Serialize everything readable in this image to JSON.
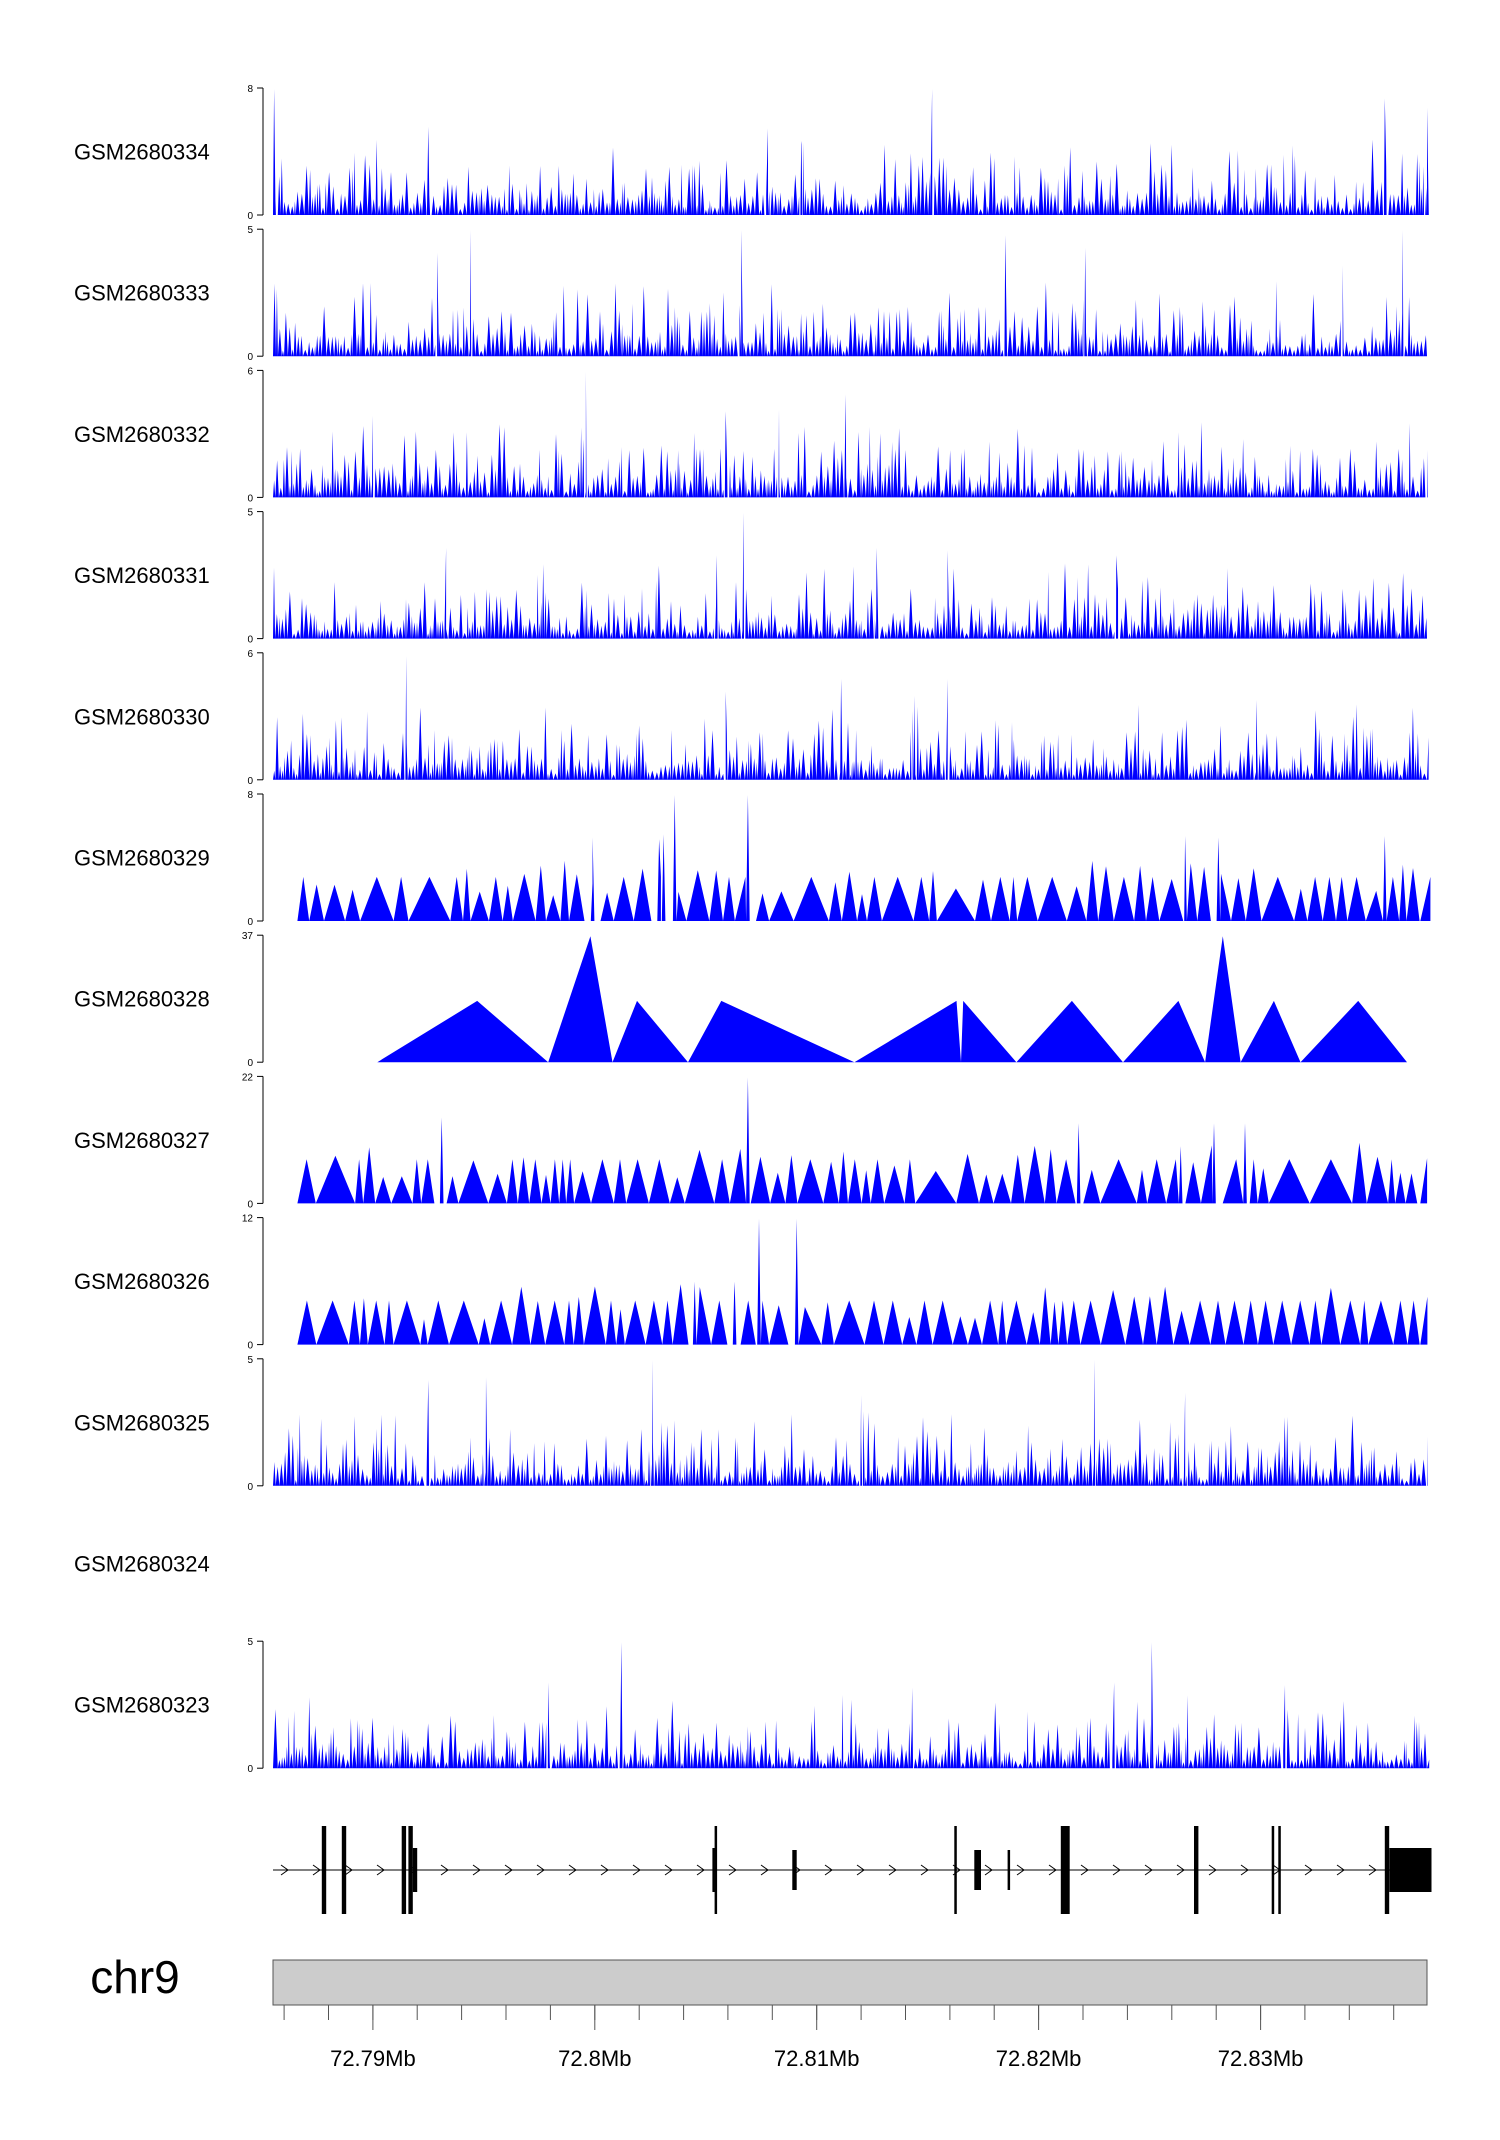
{
  "chart_data": {
    "type": "area",
    "region": {
      "start": 72.7855,
      "end": 72.8375
    },
    "signal_color": "#0000ff",
    "gene_color": "#000000",
    "axis_band_color": "#cccccc",
    "tracks": [
      {
        "name": "GSM2680334",
        "ymax": "8",
        "ymin": "0",
        "ymax_value": 8,
        "density": "dense",
        "peaks": [
          [
            72.78555,
            8
          ],
          [
            72.8152,
            8
          ],
          [
            72.7925,
            5.6
          ],
          [
            72.8356,
            7.4
          ],
          [
            72.8375,
            6.8
          ],
          [
            72.8078,
            5.5
          ],
          [
            72.8093,
            4.7
          ]
        ]
      },
      {
        "name": "GSM2680333",
        "ymax": "5",
        "ymin": "0",
        "ymax_value": 5,
        "density": "dense",
        "peaks": [
          [
            72.7944,
            5
          ],
          [
            72.8066,
            5
          ],
          [
            72.8185,
            4.8
          ],
          [
            72.8364,
            5
          ],
          [
            72.7929,
            4.1
          ],
          [
            72.8221,
            4.3
          ],
          [
            72.8337,
            3.6
          ]
        ]
      },
      {
        "name": "GSM2680332",
        "ymax": "6",
        "ymin": "0",
        "ymax_value": 6,
        "density": "dense",
        "peaks": [
          [
            72.7996,
            6
          ],
          [
            72.8113,
            4.9
          ],
          [
            72.8059,
            4.1
          ],
          [
            72.8083,
            4.2
          ],
          [
            72.79,
            3.9
          ],
          [
            72.8263,
            3.1
          ]
        ]
      },
      {
        "name": "GSM2680331",
        "ymax": "5",
        "ymin": "0",
        "ymax_value": 5,
        "density": "dense",
        "peaks": [
          [
            72.8067,
            5
          ],
          [
            72.7933,
            3.6
          ],
          [
            72.8055,
            3.3
          ],
          [
            72.8127,
            3.6
          ],
          [
            72.8159,
            3.5
          ],
          [
            72.8235,
            3.3
          ]
        ]
      },
      {
        "name": "GSM2680330",
        "ymax": "6",
        "ymin": "0",
        "ymax_value": 6,
        "density": "dense",
        "peaks": [
          [
            72.7915,
            5.9
          ],
          [
            72.8059,
            4.2
          ],
          [
            72.8111,
            4.8
          ],
          [
            72.8159,
            4.8
          ],
          [
            72.8144,
            4
          ],
          [
            72.8298,
            3.8
          ]
        ]
      },
      {
        "name": "GSM2680329",
        "ymax": "8",
        "ymin": "0",
        "ymax_value": 8,
        "density": "triangles",
        "peaks": [
          [
            72.8036,
            8
          ],
          [
            72.8069,
            8
          ],
          [
            72.8031,
            5.5
          ],
          [
            72.8029,
            5.2
          ],
          [
            72.7999,
            5.3
          ],
          [
            72.8266,
            5.4
          ],
          [
            72.8356,
            5.4
          ],
          [
            72.8281,
            5.3
          ]
        ]
      },
      {
        "name": "GSM2680328",
        "ymax": "37",
        "ymin": "0",
        "ymax_value": 37,
        "density": "sparse",
        "peaks": [
          [
            72.7902,
            0
          ],
          [
            72.7947,
            18
          ],
          [
            72.7979,
            0
          ],
          [
            72.7998,
            37
          ],
          [
            72.8008,
            0
          ],
          [
            72.8019,
            18
          ],
          [
            72.8042,
            0
          ],
          [
            72.8057,
            18
          ],
          [
            72.8117,
            0
          ],
          [
            72.8163,
            18
          ],
          [
            72.8165,
            0
          ],
          [
            72.8166,
            18
          ],
          [
            72.819,
            0
          ],
          [
            72.8215,
            18
          ],
          [
            72.8238,
            0
          ],
          [
            72.8263,
            18
          ],
          [
            72.8275,
            0
          ],
          [
            72.8283,
            37
          ],
          [
            72.8291,
            0
          ],
          [
            72.8306,
            18
          ],
          [
            72.8318,
            0
          ],
          [
            72.8344,
            18
          ],
          [
            72.8366,
            0
          ]
        ]
      },
      {
        "name": "GSM2680327",
        "ymax": "22",
        "ymin": "0",
        "ymax_value": 22,
        "density": "triangles",
        "peaks": [
          [
            72.8069,
            22
          ],
          [
            72.7931,
            15
          ],
          [
            72.8218,
            14
          ],
          [
            72.8279,
            14
          ],
          [
            72.8293,
            14
          ],
          [
            72.8264,
            10
          ]
        ]
      },
      {
        "name": "GSM2680326",
        "ymax": "12",
        "ymin": "0",
        "ymax_value": 12,
        "density": "triangles",
        "peaks": [
          [
            72.8074,
            12
          ],
          [
            72.8091,
            12
          ],
          [
            72.8063,
            6
          ],
          [
            72.8045,
            6
          ]
        ]
      },
      {
        "name": "GSM2680325",
        "ymax": "5",
        "ymin": "0",
        "ymax_value": 5,
        "density": "dense",
        "peaks": [
          [
            72.8026,
            5
          ],
          [
            72.8225,
            5
          ],
          [
            72.7925,
            4.2
          ],
          [
            72.7951,
            4.3
          ],
          [
            72.812,
            3.6
          ],
          [
            72.8266,
            3.7
          ]
        ]
      },
      {
        "name": "GSM2680324",
        "ymax": "",
        "ymin": "",
        "ymax_value": 0,
        "density": "empty",
        "peaks": []
      },
      {
        "name": "GSM2680323",
        "ymax": "5",
        "ymin": "0",
        "ymax_value": 5,
        "density": "dense",
        "peaks": [
          [
            72.8012,
            5
          ],
          [
            72.8251,
            5
          ],
          [
            72.8234,
            3.4
          ],
          [
            72.7979,
            3.4
          ],
          [
            72.8143,
            3.2
          ],
          [
            72.8311,
            3.3
          ]
        ]
      }
    ],
    "gene": {
      "strand": "+",
      "exons": [
        {
          "start": 72.7877,
          "end": 72.7879,
          "type": "tall"
        },
        {
          "start": 72.7886,
          "end": 72.7888,
          "type": "tall"
        },
        {
          "start": 72.7913,
          "end": 72.7915,
          "type": "tall"
        },
        {
          "start": 72.7916,
          "end": 72.7918,
          "type": "tall"
        },
        {
          "start": 72.7918,
          "end": 72.792,
          "type": "mid"
        },
        {
          "start": 72.8053,
          "end": 72.8054,
          "type": "mid"
        },
        {
          "start": 72.8054,
          "end": 72.8055,
          "type": "tall"
        },
        {
          "start": 72.8089,
          "end": 72.8091,
          "type": "short"
        },
        {
          "start": 72.8162,
          "end": 72.8163,
          "type": "tall"
        },
        {
          "start": 72.8171,
          "end": 72.8174,
          "type": "short"
        },
        {
          "start": 72.8186,
          "end": 72.8187,
          "type": "short"
        },
        {
          "start": 72.821,
          "end": 72.8214,
          "type": "tall"
        },
        {
          "start": 72.827,
          "end": 72.8272,
          "type": "tall"
        },
        {
          "start": 72.8305,
          "end": 72.8306,
          "type": "tall"
        },
        {
          "start": 72.8308,
          "end": 72.8309,
          "type": "tall"
        },
        {
          "start": 72.8356,
          "end": 72.8358,
          "type": "tall"
        },
        {
          "start": 72.8358,
          "end": 72.8377,
          "type": "block"
        }
      ]
    },
    "axis": {
      "chromosome": "chr9",
      "major_ticks": [
        {
          "value": 72.79,
          "label": "72.79Mb"
        },
        {
          "value": 72.8,
          "label": "72.8Mb"
        },
        {
          "value": 72.81,
          "label": "72.81Mb"
        },
        {
          "value": 72.82,
          "label": "72.82Mb"
        },
        {
          "value": 72.83,
          "label": "72.83Mb"
        }
      ],
      "minor_step": 0.002
    }
  }
}
